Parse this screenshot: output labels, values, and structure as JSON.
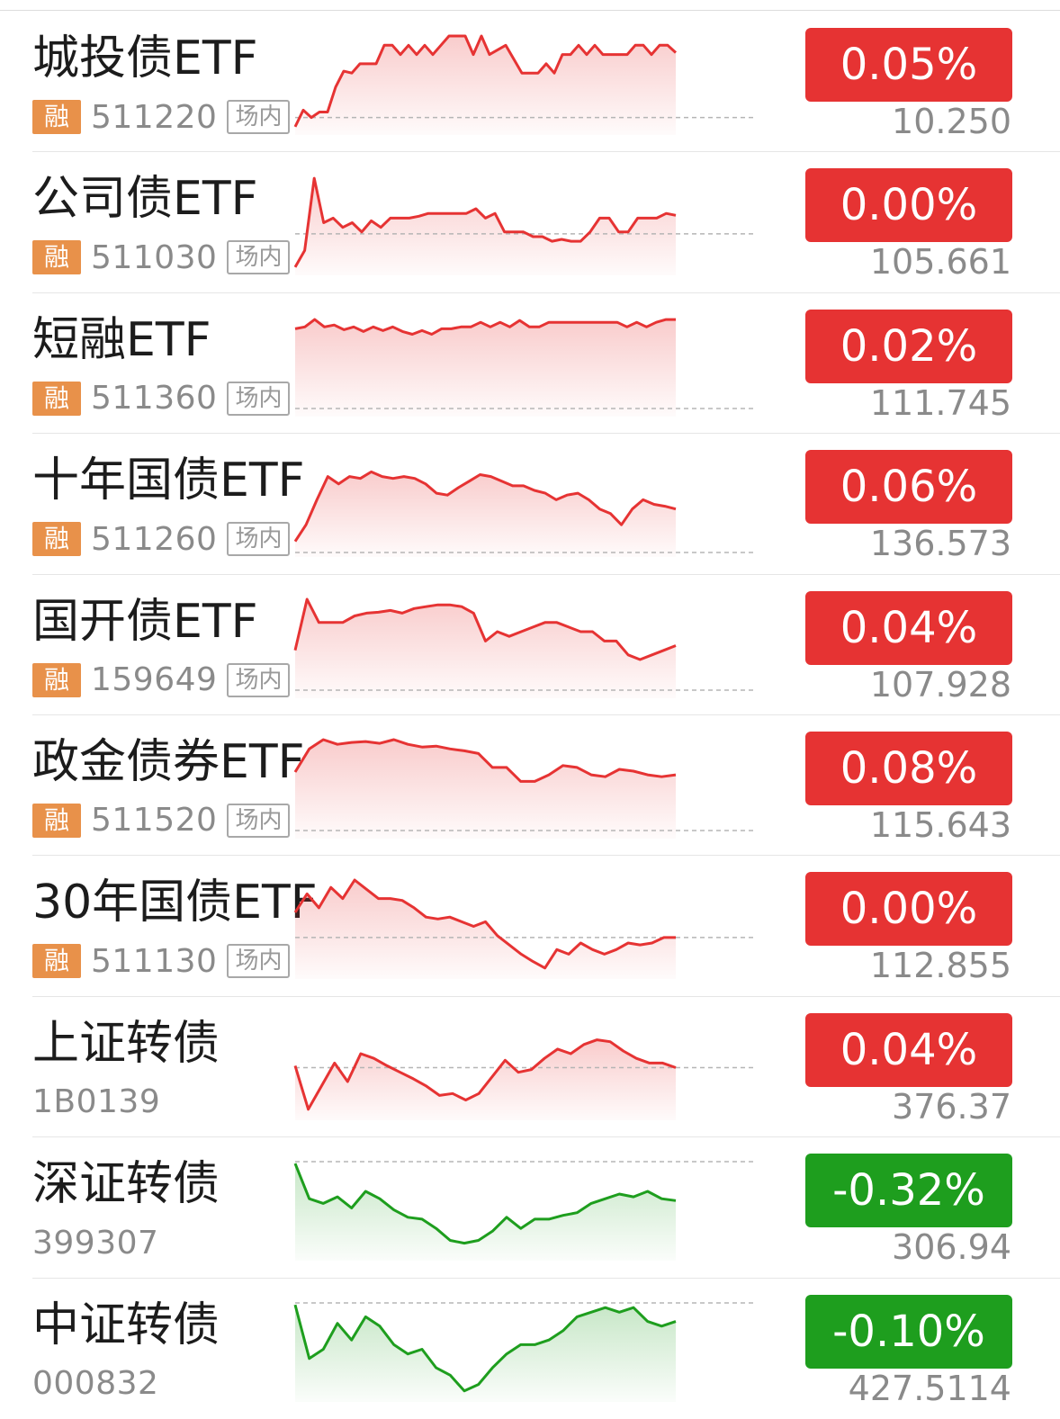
{
  "colors": {
    "up": "#e63333",
    "down": "#1e9e1e",
    "badge": "#e8914a"
  },
  "badges": {
    "margin": "融",
    "market": "场内"
  },
  "rows": [
    {
      "name": "城投债ETF",
      "code": "511220",
      "margin": true,
      "market": true,
      "change": "0.05%",
      "price": "10.250",
      "dir": "up",
      "spark": {
        "ref": 0.88,
        "points": [
          0.98,
          0.8,
          0.88,
          0.82,
          0.82,
          0.55,
          0.38,
          0.4,
          0.3,
          0.3,
          0.3,
          0.1,
          0.1,
          0.2,
          0.1,
          0.2,
          0.1,
          0.2,
          0.1,
          0.0,
          0.0,
          0.0,
          0.2,
          0.0,
          0.2,
          0.15,
          0.1,
          0.25,
          0.4,
          0.4,
          0.4,
          0.3,
          0.4,
          0.2,
          0.2,
          0.1,
          0.2,
          0.1,
          0.2,
          0.2,
          0.2,
          0.2,
          0.1,
          0.1,
          0.2,
          0.1,
          0.1,
          0.18
        ]
      }
    },
    {
      "name": "公司债ETF",
      "code": "511030",
      "margin": true,
      "market": true,
      "change": "0.00%",
      "price": "105.661",
      "dir": "up",
      "spark": {
        "ref": 0.62,
        "points": [
          0.98,
          0.8,
          0.02,
          0.5,
          0.45,
          0.55,
          0.5,
          0.6,
          0.48,
          0.55,
          0.45,
          0.45,
          0.45,
          0.43,
          0.4,
          0.4,
          0.4,
          0.4,
          0.4,
          0.35,
          0.45,
          0.4,
          0.6,
          0.6,
          0.6,
          0.65,
          0.65,
          0.7,
          0.68,
          0.7,
          0.7,
          0.6,
          0.45,
          0.45,
          0.6,
          0.6,
          0.45,
          0.45,
          0.45,
          0.4,
          0.42
        ]
      }
    },
    {
      "name": "短融ETF",
      "code": "511360",
      "margin": true,
      "market": true,
      "change": "0.02%",
      "price": "111.745",
      "dir": "up",
      "spark": {
        "ref": 0.98,
        "points": [
          0.12,
          0.1,
          0.02,
          0.1,
          0.08,
          0.13,
          0.1,
          0.15,
          0.1,
          0.14,
          0.1,
          0.15,
          0.18,
          0.14,
          0.18,
          0.12,
          0.12,
          0.1,
          0.1,
          0.05,
          0.1,
          0.05,
          0.1,
          0.03,
          0.1,
          0.1,
          0.05,
          0.05,
          0.05,
          0.05,
          0.05,
          0.05,
          0.05,
          0.05,
          0.1,
          0.05,
          0.1,
          0.05,
          0.02,
          0.02
        ]
      }
    },
    {
      "name": "十年国债ETF",
      "code": "511260",
      "margin": true,
      "market": true,
      "change": "0.06%",
      "price": "136.573",
      "dir": "up",
      "spark": {
        "ref": 1.02,
        "points": [
          0.9,
          0.72,
          0.45,
          0.2,
          0.28,
          0.2,
          0.22,
          0.15,
          0.2,
          0.22,
          0.2,
          0.22,
          0.28,
          0.38,
          0.4,
          0.32,
          0.25,
          0.18,
          0.2,
          0.25,
          0.3,
          0.3,
          0.35,
          0.38,
          0.45,
          0.4,
          0.38,
          0.45,
          0.55,
          0.6,
          0.72,
          0.55,
          0.45,
          0.5,
          0.52,
          0.55
        ]
      }
    },
    {
      "name": "国开债ETF",
      "code": "159649",
      "margin": true,
      "market": true,
      "change": "0.04%",
      "price": "107.928",
      "dir": "up",
      "spark": {
        "ref": 0.98,
        "points": [
          0.55,
          0.0,
          0.25,
          0.25,
          0.25,
          0.18,
          0.15,
          0.14,
          0.12,
          0.15,
          0.1,
          0.08,
          0.06,
          0.06,
          0.08,
          0.15,
          0.45,
          0.35,
          0.4,
          0.35,
          0.3,
          0.25,
          0.25,
          0.3,
          0.35,
          0.35,
          0.45,
          0.45,
          0.6,
          0.65,
          0.6,
          0.55,
          0.5
        ]
      }
    },
    {
      "name": "政金债券ETF",
      "code": "511520",
      "margin": true,
      "market": true,
      "change": "0.08%",
      "price": "115.643",
      "dir": "up",
      "spark": {
        "ref": 0.98,
        "points": [
          0.35,
          0.1,
          0.0,
          0.05,
          0.03,
          0.02,
          0.04,
          0.0,
          0.05,
          0.08,
          0.07,
          0.1,
          0.12,
          0.15,
          0.3,
          0.3,
          0.45,
          0.45,
          0.38,
          0.28,
          0.3,
          0.38,
          0.4,
          0.32,
          0.34,
          0.38,
          0.4,
          0.38
        ]
      }
    },
    {
      "name": "30年国债ETF",
      "code": "511130",
      "margin": true,
      "market": true,
      "change": "0.00%",
      "price": "112.855",
      "dir": "up",
      "spark": {
        "ref": 0.62,
        "points": [
          0.35,
          0.15,
          0.3,
          0.08,
          0.2,
          0.0,
          0.1,
          0.2,
          0.2,
          0.22,
          0.3,
          0.4,
          0.42,
          0.4,
          0.45,
          0.5,
          0.45,
          0.6,
          0.7,
          0.8,
          0.88,
          0.95,
          0.75,
          0.8,
          0.68,
          0.75,
          0.8,
          0.75,
          0.68,
          0.7,
          0.68,
          0.62,
          0.62
        ]
      }
    },
    {
      "name": "上证转债",
      "code": "1B0139",
      "margin": false,
      "market": false,
      "change": "0.04%",
      "price": "376.37",
      "dir": "up",
      "spark": {
        "ref": 0.5,
        "points": [
          0.48,
          0.95,
          0.7,
          0.45,
          0.65,
          0.35,
          0.4,
          0.48,
          0.55,
          0.62,
          0.7,
          0.8,
          0.78,
          0.85,
          0.78,
          0.6,
          0.42,
          0.55,
          0.52,
          0.4,
          0.3,
          0.35,
          0.25,
          0.2,
          0.22,
          0.32,
          0.4,
          0.45,
          0.45,
          0.5
        ]
      }
    },
    {
      "name": "深证转债",
      "code": "399307",
      "margin": false,
      "market": false,
      "change": "-0.32%",
      "price": "306.94",
      "dir": "down",
      "spark": {
        "ref": 0.0,
        "points": [
          0.02,
          0.4,
          0.45,
          0.38,
          0.5,
          0.32,
          0.4,
          0.52,
          0.6,
          0.62,
          0.72,
          0.85,
          0.88,
          0.85,
          0.75,
          0.6,
          0.72,
          0.62,
          0.62,
          0.58,
          0.55,
          0.45,
          0.4,
          0.35,
          0.38,
          0.32,
          0.4,
          0.42
        ]
      }
    },
    {
      "name": "中证转债",
      "code": "000832",
      "margin": false,
      "market": false,
      "change": "-0.10%",
      "price": "427.5114",
      "dir": "down",
      "spark": {
        "ref": 0.0,
        "points": [
          0.02,
          0.6,
          0.5,
          0.22,
          0.4,
          0.15,
          0.25,
          0.45,
          0.55,
          0.5,
          0.7,
          0.78,
          0.95,
          0.88,
          0.7,
          0.55,
          0.45,
          0.45,
          0.4,
          0.3,
          0.15,
          0.1,
          0.05,
          0.1,
          0.05,
          0.2,
          0.25,
          0.2
        ]
      }
    }
  ]
}
